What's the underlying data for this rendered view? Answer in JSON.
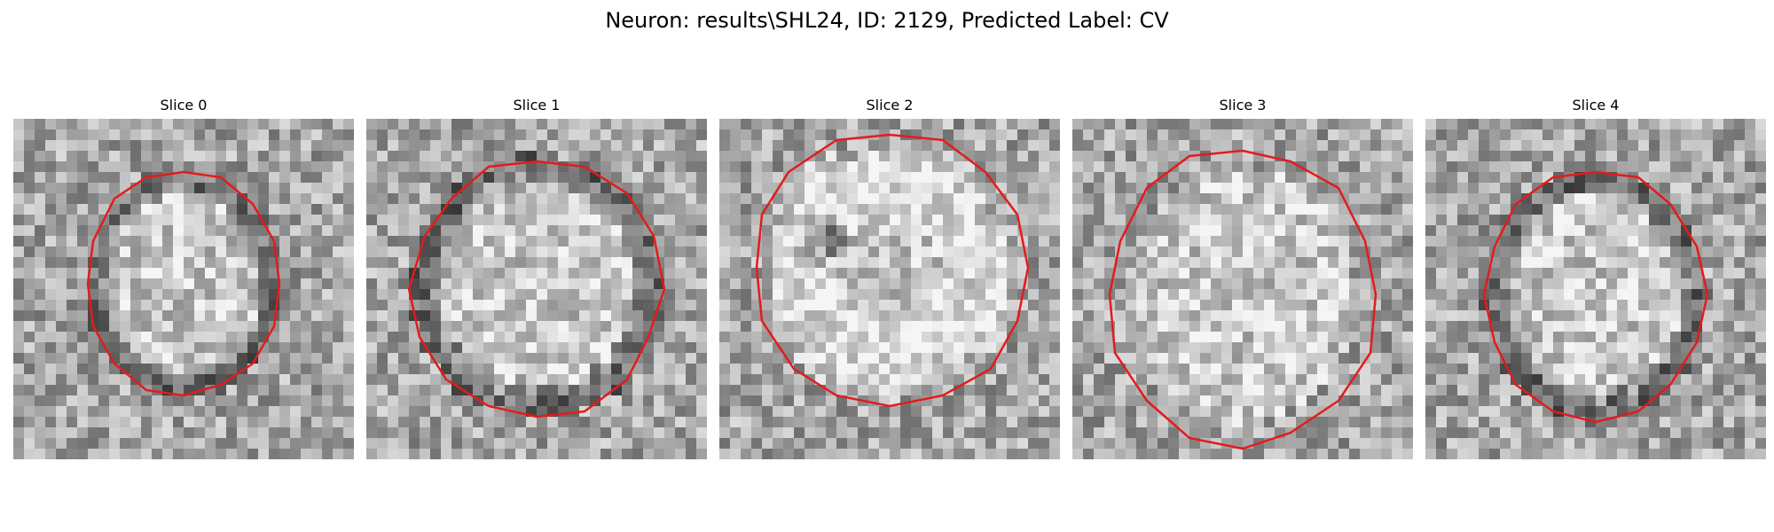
{
  "figure": {
    "title": "Neuron: results\\SHL24, ID: 2129, Predicted Label: CV",
    "contour_color": "#e41b1b",
    "colormap": "gray"
  },
  "slices": [
    {
      "title": "Slice 0",
      "dark_center": false,
      "dark_ring": true
    },
    {
      "title": "Slice 1",
      "dark_center": false,
      "dark_ring": true
    },
    {
      "title": "Slice 2",
      "dark_center": true,
      "dark_ring": false
    },
    {
      "title": "Slice 3",
      "dark_center": false,
      "dark_ring": false
    },
    {
      "title": "Slice 4",
      "dark_center": false,
      "dark_ring": true
    }
  ]
}
